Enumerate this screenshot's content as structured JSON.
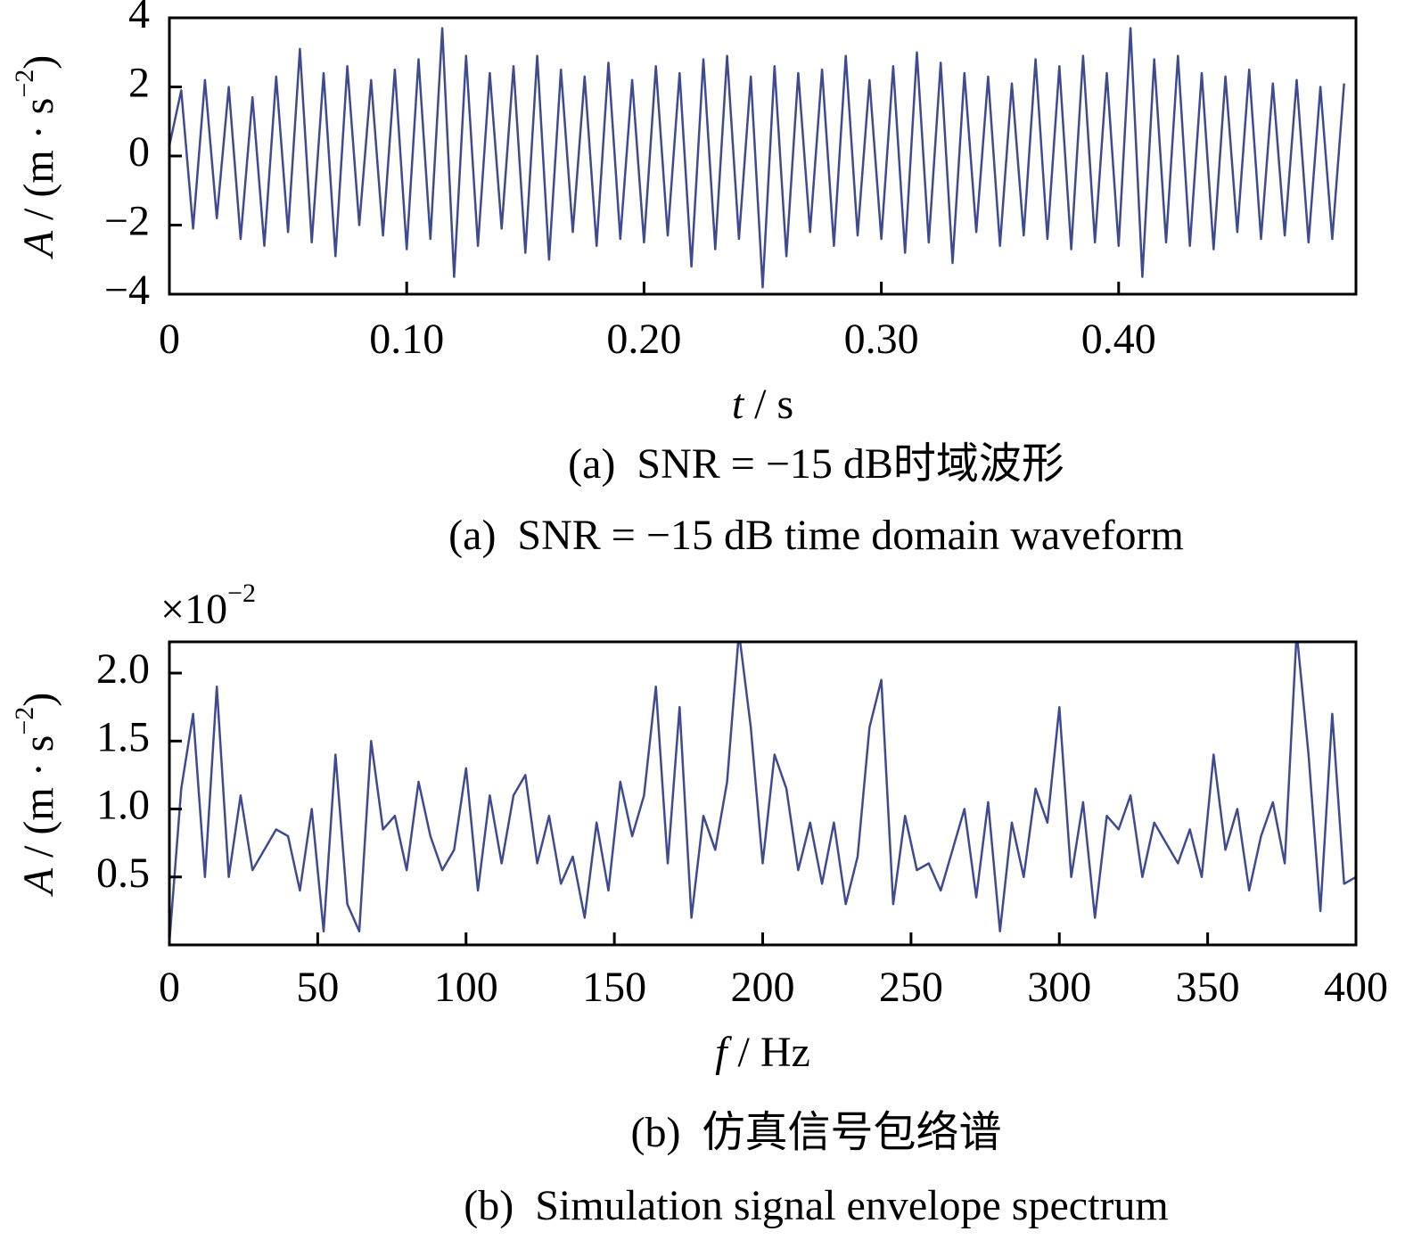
{
  "chart_data": [
    {
      "type": "line",
      "color": "#3f4b91",
      "ylabel": {
        "symbol": "A",
        "text": " / (m · s",
        "exponent": "−2",
        "end": ")"
      },
      "xlabel": {
        "symbol": "t",
        "text": " / s"
      },
      "captions": [
        "(a)  SNR = −15 dB时域波形",
        "(a)  SNR = −15 dB time domain waveform"
      ],
      "xlim": [
        0,
        0.5
      ],
      "ylim": [
        -4,
        4
      ],
      "xticks": [
        0,
        {
          "value": 0.1,
          "label": "0.10"
        },
        {
          "value": 0.2,
          "label": "0.20"
        },
        {
          "value": 0.3,
          "label": "0.30"
        },
        {
          "value": 0.4,
          "label": "0.40"
        }
      ],
      "yticks": [
        {
          "value": -4,
          "label": "−4"
        },
        {
          "value": -2,
          "label": "−2"
        },
        0,
        2,
        4
      ],
      "x": [
        0,
        0.005,
        0.01,
        0.015,
        0.02,
        0.025,
        0.03,
        0.035,
        0.04,
        0.045,
        0.05,
        0.055,
        0.06,
        0.065,
        0.07,
        0.075,
        0.08,
        0.085,
        0.09,
        0.095,
        0.1,
        0.105,
        0.11,
        0.115,
        0.12,
        0.125,
        0.13,
        0.135,
        0.14,
        0.145,
        0.15,
        0.155,
        0.16,
        0.165,
        0.17,
        0.175,
        0.18,
        0.185,
        0.19,
        0.195,
        0.2,
        0.205,
        0.21,
        0.215,
        0.22,
        0.225,
        0.23,
        0.235,
        0.24,
        0.245,
        0.25,
        0.255,
        0.26,
        0.265,
        0.27,
        0.275,
        0.28,
        0.285,
        0.29,
        0.295,
        0.3,
        0.305,
        0.31,
        0.315,
        0.32,
        0.325,
        0.33,
        0.335,
        0.34,
        0.345,
        0.35,
        0.355,
        0.36,
        0.365,
        0.37,
        0.375,
        0.38,
        0.385,
        0.39,
        0.395,
        0.4,
        0.405,
        0.41,
        0.415,
        0.42,
        0.425,
        0.43,
        0.435,
        0.44,
        0.445,
        0.45,
        0.455,
        0.46,
        0.465,
        0.47,
        0.475,
        0.48,
        0.485,
        0.49,
        0.495
      ],
      "values": [
        0.3,
        1.9,
        -2.1,
        2.2,
        -1.8,
        2.0,
        -2.4,
        1.7,
        -2.6,
        2.3,
        -2.2,
        3.1,
        -2.5,
        2.4,
        -2.9,
        2.6,
        -2.0,
        2.2,
        -2.3,
        2.5,
        -2.7,
        2.8,
        -2.4,
        3.7,
        -3.5,
        2.9,
        -2.6,
        2.4,
        -2.1,
        2.6,
        -2.8,
        2.9,
        -3.0,
        2.5,
        -2.2,
        2.3,
        -2.6,
        2.7,
        -2.4,
        2.2,
        -2.5,
        2.6,
        -2.3,
        2.4,
        -3.2,
        2.8,
        -2.7,
        2.9,
        -2.4,
        2.3,
        -3.8,
        2.6,
        -2.9,
        2.4,
        -2.2,
        2.5,
        -2.6,
        2.9,
        -2.3,
        2.2,
        -2.4,
        2.6,
        -2.8,
        3.0,
        -2.5,
        2.7,
        -3.1,
        2.4,
        -2.2,
        2.3,
        -2.6,
        2.1,
        -2.3,
        2.8,
        -2.4,
        2.6,
        -2.7,
        2.9,
        -2.5,
        2.4,
        -2.6,
        3.7,
        -3.5,
        2.8,
        -2.5,
        2.9,
        -2.6,
        2.4,
        -2.7,
        2.3,
        -2.2,
        2.5,
        -2.4,
        2.1,
        -2.3,
        2.2,
        -2.5,
        2.0,
        -2.4,
        2.1
      ]
    },
    {
      "type": "line",
      "color": "#3f4b91",
      "multiplier": {
        "base": "×10",
        "exponent": "−2"
      },
      "ylabel": {
        "symbol": "A",
        "text": " / (m · s",
        "exponent": "−2",
        "end": ")"
      },
      "xlabel": {
        "symbol": "f",
        "text": " / Hz"
      },
      "captions": [
        "(b)  仿真信号包络谱",
        "(b)  Simulation signal envelope spectrum"
      ],
      "xlim": [
        0,
        400
      ],
      "ylim": [
        0,
        2.23
      ],
      "xticks": [
        0,
        50,
        100,
        150,
        200,
        250,
        300,
        350,
        400
      ],
      "yticks": [
        0.5,
        {
          "value": 1,
          "label": "1.0"
        },
        1.5,
        {
          "value": 2,
          "label": "2.0"
        }
      ],
      "x": [
        0,
        4,
        8,
        12,
        16,
        20,
        24,
        28,
        32,
        36,
        40,
        44,
        48,
        52,
        56,
        60,
        64,
        68,
        72,
        76,
        80,
        84,
        88,
        92,
        96,
        100,
        104,
        108,
        112,
        116,
        120,
        124,
        128,
        132,
        136,
        140,
        144,
        148,
        152,
        156,
        160,
        164,
        168,
        172,
        176,
        180,
        184,
        188,
        192,
        196,
        200,
        204,
        208,
        212,
        216,
        220,
        224,
        228,
        232,
        236,
        240,
        244,
        248,
        252,
        256,
        260,
        264,
        268,
        272,
        276,
        280,
        284,
        288,
        292,
        296,
        300,
        304,
        308,
        312,
        316,
        320,
        324,
        328,
        332,
        336,
        340,
        344,
        348,
        352,
        356,
        360,
        364,
        368,
        372,
        376,
        380,
        384,
        388,
        392,
        396,
        400
      ],
      "values": [
        0.02,
        1.15,
        1.7,
        0.5,
        1.9,
        0.5,
        1.1,
        0.55,
        0.7,
        0.85,
        0.8,
        0.4,
        1.0,
        0.1,
        1.4,
        0.3,
        0.1,
        1.5,
        0.85,
        0.95,
        0.55,
        1.2,
        0.8,
        0.55,
        0.7,
        1.3,
        0.4,
        1.1,
        0.6,
        1.1,
        1.25,
        0.6,
        0.95,
        0.45,
        0.65,
        0.2,
        0.9,
        0.4,
        1.2,
        0.8,
        1.1,
        1.9,
        0.6,
        1.75,
        0.2,
        0.95,
        0.7,
        1.2,
        2.3,
        1.6,
        0.6,
        1.4,
        1.15,
        0.55,
        0.9,
        0.45,
        0.9,
        0.3,
        0.65,
        1.6,
        1.95,
        0.3,
        0.95,
        0.55,
        0.6,
        0.4,
        0.7,
        1.0,
        0.35,
        1.05,
        0.1,
        0.9,
        0.5,
        1.15,
        0.9,
        1.75,
        0.5,
        1.05,
        0.2,
        0.95,
        0.85,
        1.1,
        0.5,
        0.9,
        0.75,
        0.6,
        0.85,
        0.5,
        1.4,
        0.7,
        1.0,
        0.4,
        0.8,
        1.05,
        0.6,
        2.3,
        1.4,
        0.25,
        1.7,
        0.45,
        0.5
      ]
    }
  ]
}
